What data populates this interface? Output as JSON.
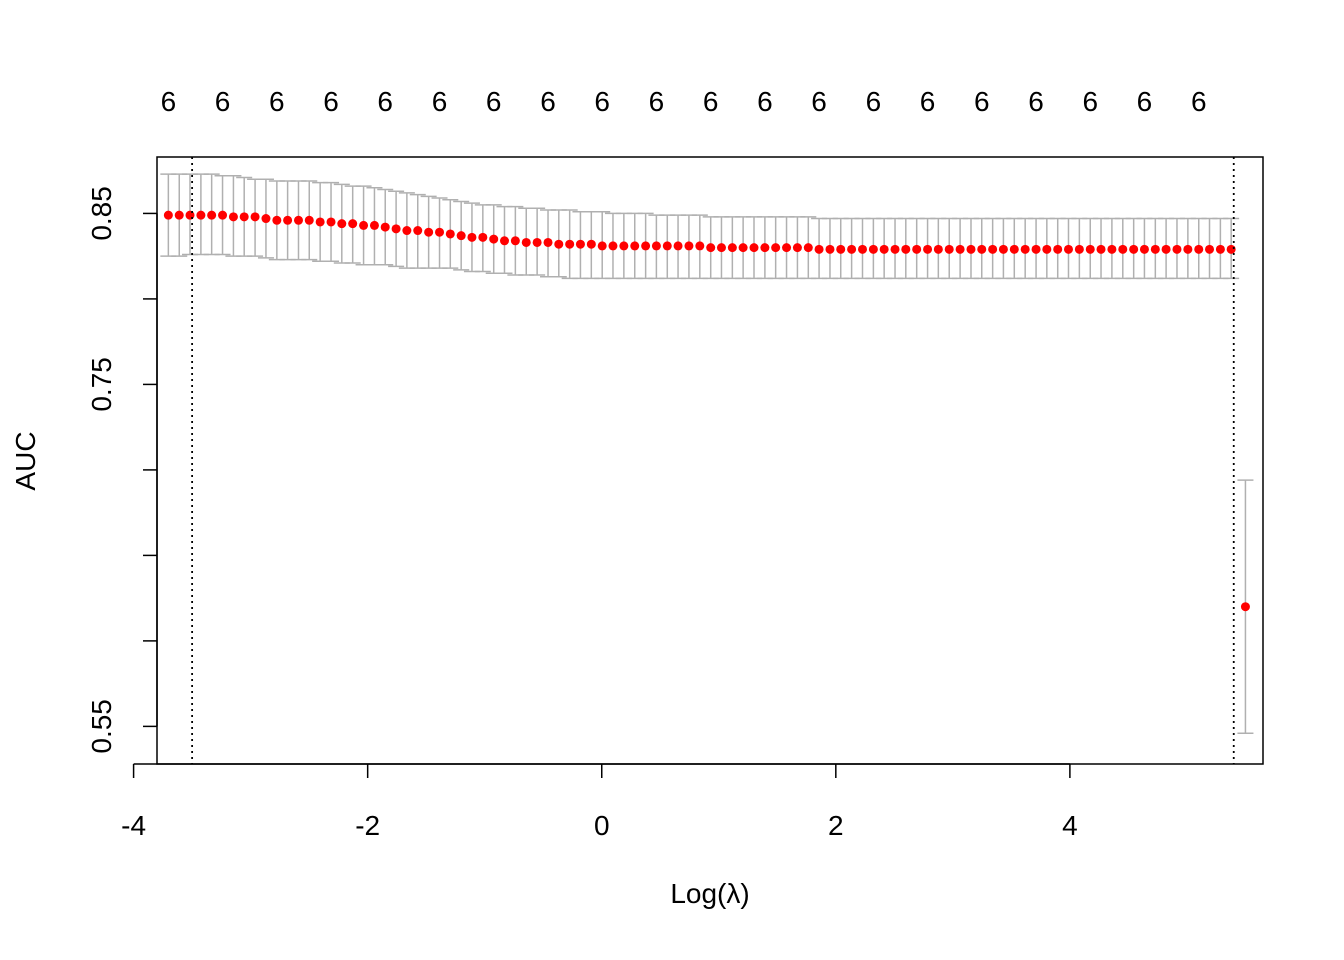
{
  "chart_data": {
    "type": "scatter",
    "title": "",
    "xlabel": "Log(λ)",
    "ylabel": "AUC",
    "xlim": [
      -3.8,
      5.65
    ],
    "ylim": [
      0.528,
      0.883
    ],
    "x_ticks": [
      -4,
      -2,
      0,
      2,
      4
    ],
    "x_tick_labels": [
      "-4",
      "-2",
      "0",
      "2",
      "4"
    ],
    "y_ticks": [
      0.55,
      0.6,
      0.65,
      0.7,
      0.75,
      0.8,
      0.85
    ],
    "y_tick_labels": [
      "0.55",
      "0.75",
      "0.85"
    ],
    "y_tick_labels_at": [
      0.55,
      0.75,
      0.85
    ],
    "top_axis": {
      "x": [
        -3.703,
        -3.24,
        -2.776,
        -2.313,
        -1.85,
        -1.386,
        -0.923,
        -0.459,
        0.004,
        0.467,
        0.931,
        1.394,
        1.857,
        2.321,
        2.784,
        3.247,
        3.711,
        4.174,
        4.637,
        5.101
      ],
      "labels": [
        "6",
        "6",
        "6",
        "6",
        "6",
        "6",
        "6",
        "6",
        "6",
        "6",
        "6",
        "6",
        "6",
        "6",
        "6",
        "6",
        "6",
        "6",
        "6",
        "6"
      ]
    },
    "vlines": [
      -3.5,
      5.4
    ],
    "grid": false,
    "legend": "none",
    "colors": {
      "points": "#ff0000",
      "error_bars": "#b0b0b0",
      "vlines": "#000000"
    },
    "series": [
      {
        "x": [
          -3.703,
          -3.61,
          -3.518,
          -3.425,
          -3.333,
          -3.24,
          -3.147,
          -3.055,
          -2.962,
          -2.869,
          -2.776,
          -2.684,
          -2.591,
          -2.499,
          -2.406,
          -2.313,
          -2.221,
          -2.128,
          -2.035,
          -1.942,
          -1.85,
          -1.757,
          -1.665,
          -1.572,
          -1.479,
          -1.386,
          -1.294,
          -1.201,
          -1.109,
          -1.016,
          -0.923,
          -0.831,
          -0.738,
          -0.645,
          -0.552,
          -0.459,
          -0.367,
          -0.274,
          -0.182,
          -0.089,
          0.004,
          0.096,
          0.189,
          0.282,
          0.375,
          0.467,
          0.56,
          0.652,
          0.745,
          0.838,
          0.931,
          1.023,
          1.116,
          1.208,
          1.301,
          1.394,
          1.486,
          1.579,
          1.672,
          1.765,
          1.857,
          1.95,
          2.042,
          2.135,
          2.228,
          2.321,
          2.413,
          2.506,
          2.598,
          2.691,
          2.784,
          2.876,
          2.969,
          3.062,
          3.155,
          3.247,
          3.34,
          3.432,
          3.525,
          3.618,
          3.711,
          3.803,
          3.896,
          3.988,
          4.081,
          4.174,
          4.266,
          4.359,
          4.452,
          4.545,
          4.637,
          4.73,
          4.822,
          4.915,
          5.008,
          5.101,
          5.193,
          5.286,
          5.378,
          5.5
        ],
        "y": [
          0.849,
          0.849,
          0.849,
          0.849,
          0.849,
          0.849,
          0.848,
          0.848,
          0.848,
          0.847,
          0.846,
          0.846,
          0.846,
          0.846,
          0.845,
          0.845,
          0.844,
          0.844,
          0.843,
          0.843,
          0.842,
          0.841,
          0.84,
          0.84,
          0.839,
          0.839,
          0.838,
          0.837,
          0.836,
          0.836,
          0.835,
          0.834,
          0.834,
          0.833,
          0.833,
          0.833,
          0.832,
          0.832,
          0.832,
          0.832,
          0.831,
          0.831,
          0.831,
          0.831,
          0.831,
          0.831,
          0.831,
          0.831,
          0.831,
          0.831,
          0.83,
          0.83,
          0.83,
          0.83,
          0.83,
          0.83,
          0.83,
          0.83,
          0.83,
          0.83,
          0.829,
          0.829,
          0.829,
          0.829,
          0.829,
          0.829,
          0.829,
          0.829,
          0.829,
          0.829,
          0.829,
          0.829,
          0.829,
          0.829,
          0.829,
          0.829,
          0.829,
          0.829,
          0.829,
          0.829,
          0.829,
          0.829,
          0.829,
          0.829,
          0.829,
          0.829,
          0.829,
          0.829,
          0.829,
          0.829,
          0.829,
          0.829,
          0.829,
          0.829,
          0.829,
          0.829,
          0.829,
          0.829,
          0.829,
          0.62
        ],
        "upper": [
          0.873,
          0.873,
          0.873,
          0.873,
          0.873,
          0.872,
          0.872,
          0.871,
          0.87,
          0.87,
          0.869,
          0.869,
          0.869,
          0.869,
          0.868,
          0.868,
          0.867,
          0.866,
          0.866,
          0.865,
          0.864,
          0.863,
          0.862,
          0.861,
          0.86,
          0.859,
          0.858,
          0.857,
          0.856,
          0.855,
          0.855,
          0.854,
          0.854,
          0.853,
          0.853,
          0.852,
          0.852,
          0.852,
          0.851,
          0.851,
          0.851,
          0.85,
          0.85,
          0.85,
          0.85,
          0.849,
          0.849,
          0.849,
          0.849,
          0.849,
          0.848,
          0.848,
          0.848,
          0.848,
          0.848,
          0.848,
          0.848,
          0.848,
          0.848,
          0.848,
          0.847,
          0.847,
          0.847,
          0.847,
          0.847,
          0.847,
          0.847,
          0.847,
          0.847,
          0.847,
          0.847,
          0.847,
          0.847,
          0.847,
          0.847,
          0.847,
          0.847,
          0.847,
          0.847,
          0.847,
          0.847,
          0.847,
          0.847,
          0.847,
          0.847,
          0.847,
          0.847,
          0.847,
          0.847,
          0.847,
          0.847,
          0.847,
          0.847,
          0.847,
          0.847,
          0.847,
          0.847,
          0.847,
          0.847,
          0.694
        ],
        "lower": [
          0.825,
          0.825,
          0.826,
          0.826,
          0.826,
          0.826,
          0.825,
          0.825,
          0.825,
          0.824,
          0.823,
          0.823,
          0.823,
          0.823,
          0.822,
          0.822,
          0.821,
          0.821,
          0.82,
          0.82,
          0.82,
          0.819,
          0.818,
          0.818,
          0.818,
          0.818,
          0.818,
          0.817,
          0.816,
          0.816,
          0.815,
          0.815,
          0.814,
          0.814,
          0.814,
          0.813,
          0.813,
          0.812,
          0.812,
          0.812,
          0.812,
          0.812,
          0.812,
          0.812,
          0.812,
          0.812,
          0.812,
          0.812,
          0.812,
          0.812,
          0.812,
          0.812,
          0.812,
          0.812,
          0.812,
          0.812,
          0.812,
          0.812,
          0.812,
          0.812,
          0.812,
          0.812,
          0.812,
          0.812,
          0.812,
          0.812,
          0.812,
          0.812,
          0.812,
          0.812,
          0.812,
          0.812,
          0.812,
          0.812,
          0.812,
          0.812,
          0.812,
          0.812,
          0.812,
          0.812,
          0.812,
          0.812,
          0.812,
          0.812,
          0.812,
          0.812,
          0.812,
          0.812,
          0.812,
          0.812,
          0.812,
          0.812,
          0.812,
          0.812,
          0.812,
          0.812,
          0.812,
          0.812,
          0.812,
          0.546
        ]
      }
    ]
  }
}
